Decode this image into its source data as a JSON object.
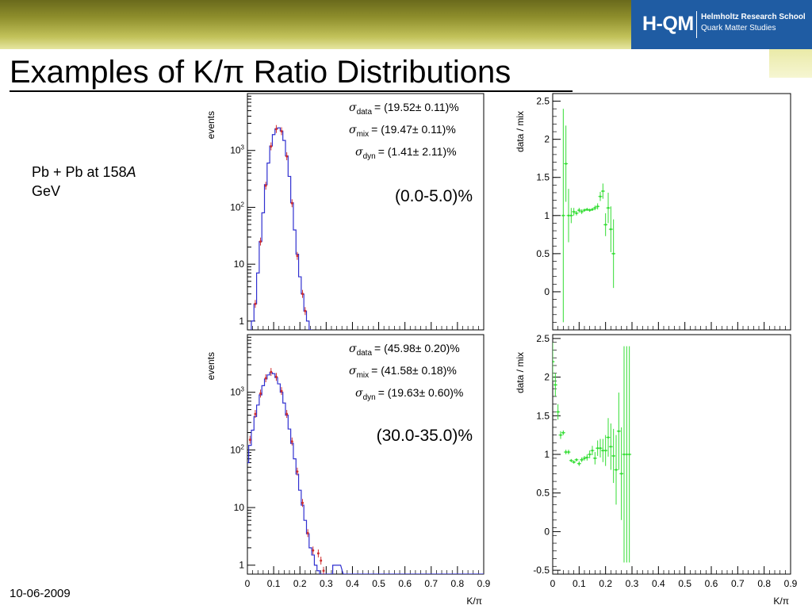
{
  "header": {
    "logo_mark": "H-QM",
    "logo_line1": "Helmholtz Research School",
    "logo_line2": "Quark Matter Studies",
    "brand_color": "#1f5ca3"
  },
  "slide": {
    "title": "Examples of K/π Ratio Distributions",
    "subtitle_main": "Pb + Pb at 158",
    "subtitle_italic": "A",
    "subtitle_unit": "GeV",
    "date": "10-06-2009"
  },
  "chart_data": [
    {
      "type": "line",
      "id": "top-left",
      "ylabel": "events",
      "xlabel": "",
      "log_y": true,
      "xlim": [
        0,
        0.9
      ],
      "ylim": [
        0.7,
        10000
      ],
      "y_ticks": [
        "1",
        "10",
        "10²",
        "10³"
      ],
      "annotations": [
        "(19.52± 0.11)%",
        "(19.47± 0.11)%",
        "(1.41± 2.11)%"
      ],
      "sigma_subscripts": [
        "data",
        "mix",
        "dyn"
      ],
      "centrality": "(0.0-5.0)%",
      "series": [
        {
          "color": "#3030d0",
          "x": [
            0.02,
            0.03,
            0.04,
            0.05,
            0.06,
            0.07,
            0.08,
            0.09,
            0.1,
            0.11,
            0.12,
            0.13,
            0.14,
            0.15,
            0.16,
            0.17,
            0.18,
            0.19,
            0.2,
            0.21,
            0.22,
            0.23,
            0.24
          ],
          "y": [
            1,
            2,
            7,
            25,
            80,
            250,
            600,
            1200,
            1900,
            2400,
            2500,
            2200,
            1500,
            800,
            350,
            120,
            40,
            15,
            6,
            3,
            1.5,
            1,
            0.7
          ]
        },
        {
          "color": "#d03030",
          "x": [
            0.03,
            0.05,
            0.07,
            0.09,
            0.11,
            0.13,
            0.15,
            0.17,
            0.19,
            0.21,
            0.22
          ],
          "y": [
            2,
            25,
            240,
            1180,
            2380,
            2180,
            790,
            118,
            14,
            3,
            1.5
          ]
        }
      ]
    },
    {
      "type": "scatter",
      "id": "top-right",
      "ylabel": "data / mix",
      "xlabel": "",
      "xlim": [
        0,
        0.9
      ],
      "ylim": [
        -0.5,
        2.6
      ],
      "y_ticks": [
        "0",
        "0.5",
        "1",
        "1.5",
        "2",
        "2.5"
      ],
      "series": [
        {
          "color": "#33dd33",
          "x": [
            0.04,
            0.05,
            0.06,
            0.07,
            0.08,
            0.09,
            0.1,
            0.11,
            0.12,
            0.13,
            0.14,
            0.15,
            0.16,
            0.17,
            0.18,
            0.19,
            0.2,
            0.21,
            0.22,
            0.23
          ],
          "y": [
            1.0,
            1.68,
            1.0,
            1.0,
            1.05,
            1.03,
            1.07,
            1.05,
            1.07,
            1.08,
            1.07,
            1.08,
            1.1,
            1.12,
            1.25,
            1.32,
            0.88,
            1.1,
            0.82,
            0.5
          ],
          "err": [
            1.4,
            0.5,
            0.35,
            0.1,
            0.05,
            0.03,
            0.03,
            0.03,
            0.02,
            0.02,
            0.02,
            0.02,
            0.03,
            0.04,
            0.06,
            0.1,
            0.15,
            0.2,
            0.3,
            0.45
          ]
        }
      ]
    },
    {
      "type": "line",
      "id": "bottom-left",
      "ylabel": "events",
      "xlabel": "K/π",
      "log_y": true,
      "xlim": [
        0,
        0.9
      ],
      "ylim": [
        0.7,
        10000
      ],
      "x_ticks": [
        "0",
        "0.1",
        "0.2",
        "0.3",
        "0.4",
        "0.5",
        "0.6",
        "0.7",
        "0.8",
        "0.9"
      ],
      "y_ticks": [
        "1",
        "10",
        "10²",
        "10³"
      ],
      "annotations": [
        "(45.98± 0.20)%",
        "(41.58± 0.18)%",
        "(19.63± 0.60)%"
      ],
      "sigma_subscripts": [
        "data",
        "mix",
        "dyn"
      ],
      "centrality": "(30.0-35.0)%",
      "series": [
        {
          "color": "#3030d0",
          "x": [
            0.0,
            0.01,
            0.02,
            0.03,
            0.04,
            0.05,
            0.06,
            0.07,
            0.08,
            0.09,
            0.1,
            0.11,
            0.12,
            0.13,
            0.14,
            0.15,
            0.16,
            0.17,
            0.18,
            0.19,
            0.2,
            0.21,
            0.22,
            0.23,
            0.24,
            0.25,
            0.26,
            0.27,
            0.28,
            0.29,
            0.3,
            0.31,
            0.32,
            0.33,
            0.35,
            0.37,
            0.39,
            0.4,
            0.6,
            0.9
          ],
          "y": [
            60,
            120,
            220,
            380,
            600,
            900,
            1300,
            1700,
            2000,
            2200,
            2100,
            1800,
            1400,
            1000,
            650,
            400,
            230,
            130,
            70,
            38,
            20,
            11,
            6,
            3.5,
            2,
            1.5,
            1,
            0.8,
            0.7,
            0.7,
            0.7,
            0.7,
            0.7,
            1,
            1,
            0.7,
            0.7,
            0.7,
            0.7,
            0.7
          ]
        },
        {
          "color": "#d03030",
          "x": [
            0.01,
            0.03,
            0.05,
            0.07,
            0.09,
            0.11,
            0.13,
            0.15,
            0.17,
            0.19,
            0.21,
            0.23,
            0.25,
            0.27,
            0.28,
            0.29
          ],
          "y": [
            150,
            420,
            950,
            1750,
            2250,
            1850,
            1050,
            420,
            140,
            42,
            12,
            3.6,
            1.8,
            1.6,
            1.2,
            0.8
          ]
        }
      ]
    },
    {
      "type": "scatter",
      "id": "bottom-right",
      "ylabel": "data / mix",
      "xlabel": "K/π",
      "xlim": [
        0,
        0.9
      ],
      "ylim": [
        -0.55,
        2.55
      ],
      "x_ticks": [
        "0",
        "0.1",
        "0.2",
        "0.3",
        "0.4",
        "0.5",
        "0.6",
        "0.7",
        "0.8",
        "0.9"
      ],
      "y_ticks": [
        "-0.5",
        "0",
        "0.5",
        "1",
        "1.5",
        "2",
        "2.5"
      ],
      "series": [
        {
          "color": "#33dd33",
          "x": [
            0.0,
            0.01,
            0.02,
            0.03,
            0.04,
            0.05,
            0.06,
            0.07,
            0.08,
            0.09,
            0.1,
            0.11,
            0.12,
            0.13,
            0.14,
            0.15,
            0.16,
            0.17,
            0.18,
            0.19,
            0.2,
            0.21,
            0.22,
            0.23,
            0.24,
            0.25,
            0.26,
            0.27,
            0.28,
            0.29
          ],
          "y": [
            2.2,
            1.9,
            1.55,
            1.25,
            1.28,
            1.03,
            1.03,
            0.92,
            0.9,
            0.93,
            0.88,
            0.93,
            0.95,
            0.96,
            1.0,
            1.05,
            0.95,
            1.08,
            1.08,
            1.05,
            1.05,
            1.22,
            1.1,
            0.98,
            0.8,
            1.3,
            0.75,
            1.0,
            1.0,
            1.0
          ],
          "err": [
            0.25,
            0.15,
            0.1,
            0.05,
            0.03,
            0.03,
            0.03,
            0.02,
            0.02,
            0.02,
            0.03,
            0.03,
            0.03,
            0.04,
            0.05,
            0.06,
            0.08,
            0.1,
            0.12,
            0.15,
            0.2,
            0.25,
            0.3,
            0.35,
            0.45,
            0.5,
            0.6,
            1.4,
            1.4,
            1.4
          ]
        }
      ]
    }
  ]
}
